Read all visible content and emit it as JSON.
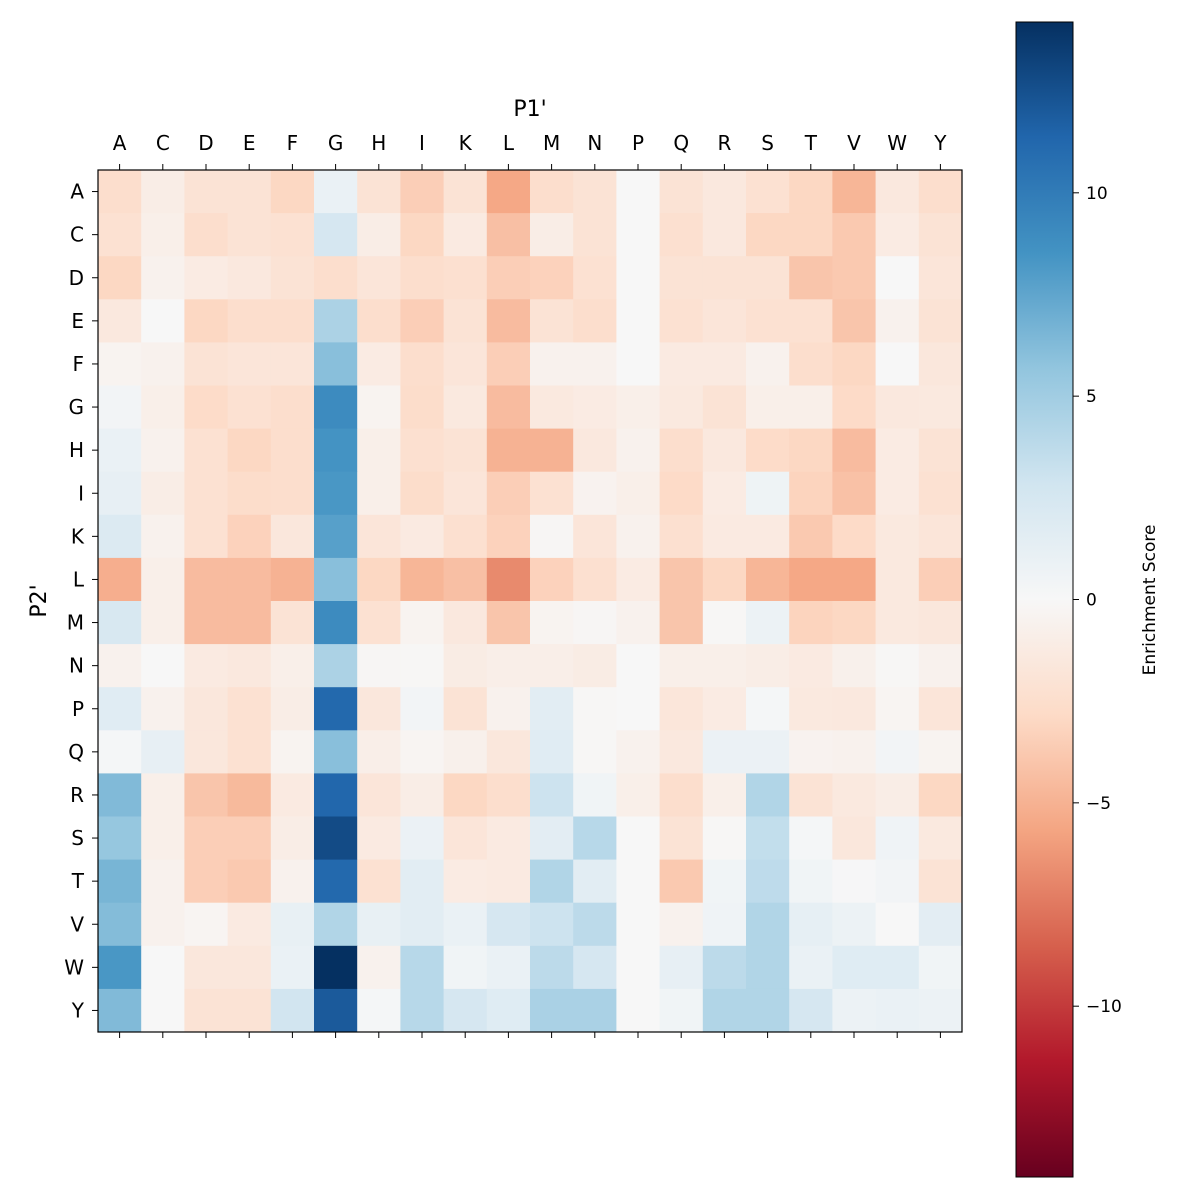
{
  "chart_data": {
    "type": "heatmap",
    "xlabel": "P1'",
    "ylabel": "P2'",
    "x_categories": [
      "A",
      "C",
      "D",
      "E",
      "F",
      "G",
      "H",
      "I",
      "K",
      "L",
      "M",
      "N",
      "P",
      "Q",
      "R",
      "S",
      "T",
      "V",
      "W",
      "Y"
    ],
    "y_categories": [
      "A",
      "C",
      "D",
      "E",
      "F",
      "G",
      "H",
      "I",
      "K",
      "L",
      "M",
      "N",
      "P",
      "Q",
      "R",
      "S",
      "T",
      "V",
      "W",
      "Y"
    ],
    "colormap": "RdBu",
    "vmin": -14.2,
    "vmax": 14.2,
    "colorbar": {
      "label": "Enrichment Score",
      "ticks": [
        -10,
        -5,
        0,
        5,
        10
      ],
      "tick_labels": [
        "−10",
        "−5",
        "0",
        "5",
        "10"
      ]
    },
    "values": [
      [
        -2.5,
        -1,
        -2,
        -2,
        -3,
        1,
        -2,
        -3.5,
        -2,
        -5.5,
        -2.5,
        -2,
        0,
        -2,
        -1.5,
        -2.2,
        -3,
        -4.8,
        -1.5,
        -2.5
      ],
      [
        -2.2,
        -0.8,
        -2.5,
        -2,
        -2.2,
        2.5,
        -1,
        -3,
        -1.3,
        -4.3,
        -1,
        -2,
        0,
        -2.3,
        -1.5,
        -3,
        -3,
        -3.8,
        -1.2,
        -2
      ],
      [
        -3,
        -0.6,
        -1.2,
        -1.5,
        -2,
        -2.5,
        -1.8,
        -2.5,
        -2.3,
        -3.5,
        -3.3,
        -2.2,
        0,
        -2,
        -2,
        -2,
        -4,
        -3.8,
        0,
        -1.8
      ],
      [
        -1.5,
        0,
        -3,
        -2.5,
        -2.5,
        4.5,
        -2.5,
        -3.5,
        -2,
        -4.5,
        -2,
        -2.5,
        0,
        -2.2,
        -1.8,
        -2.2,
        -2.2,
        -4,
        -0.6,
        -2
      ],
      [
        -0.4,
        -0.6,
        -2,
        -1.8,
        -1.8,
        6,
        -1.2,
        -2.5,
        -1.8,
        -3.5,
        -0.6,
        -0.6,
        0,
        -1.3,
        -1.3,
        -0.6,
        -2.5,
        -3,
        0,
        -1.6
      ],
      [
        0.4,
        -0.8,
        -2.7,
        -2.2,
        -2.5,
        9,
        -0.4,
        -2.6,
        -1.4,
        -4.5,
        -1.4,
        -1.2,
        -0.8,
        -1.4,
        -2,
        -0.8,
        -0.8,
        -2.8,
        -1.5,
        -1.4
      ],
      [
        1,
        -0.6,
        -2.2,
        -3,
        -2.5,
        8.5,
        -0.8,
        -2.3,
        -2,
        -5,
        -5,
        -1.5,
        -0.6,
        -2.5,
        -1.5,
        -2.7,
        -3,
        -4.5,
        -1.2,
        -2
      ],
      [
        1.2,
        -1,
        -2.2,
        -2.6,
        -2.5,
        8.3,
        -0.8,
        -2.6,
        -1.8,
        -3.5,
        -2.2,
        -0.5,
        -0.8,
        -2.8,
        -1.2,
        0.7,
        -3.2,
        -4.2,
        -1.2,
        -2.2
      ],
      [
        2,
        -0.6,
        -2.2,
        -3.3,
        -1.6,
        7.8,
        -1.8,
        -1.3,
        -2.3,
        -3.3,
        -0.2,
        -1.8,
        -0.6,
        -2.3,
        -1.3,
        -1.3,
        -3.8,
        -2.8,
        -1.4,
        -1.8
      ],
      [
        -5.2,
        -0.8,
        -4.5,
        -4.5,
        -5,
        6,
        -3,
        -4.8,
        -4.3,
        -6.8,
        -3.3,
        -2.3,
        -1.2,
        -4,
        -3,
        -4.8,
        -5.5,
        -5.5,
        -1.4,
        -3.5
      ],
      [
        2.3,
        -0.8,
        -4.5,
        -4.5,
        -2,
        9,
        -2.2,
        -0.4,
        -1.5,
        -4,
        -0.4,
        -0.2,
        -0.6,
        -4,
        -0.1,
        0.8,
        -3.2,
        -3,
        -1.4,
        -1.6
      ],
      [
        -0.6,
        0,
        -1.3,
        -1.5,
        -0.8,
        4.5,
        -0.2,
        -0.1,
        -1.1,
        -0.9,
        -0.9,
        -1.1,
        0,
        -0.8,
        -0.8,
        -1,
        -1.3,
        -0.7,
        -0.1,
        -0.6
      ],
      [
        1.7,
        -0.6,
        -1.6,
        -2.2,
        -1,
        11.2,
        -1.6,
        0.4,
        -2,
        -0.6,
        1.6,
        -0.1,
        0,
        -1.7,
        -1.2,
        0.2,
        -1.4,
        -1.5,
        -0.3,
        -1.8
      ],
      [
        0.2,
        1.2,
        -1.6,
        -2.2,
        -0.4,
        6,
        -0.9,
        -0.3,
        -0.7,
        -1.6,
        1.7,
        -0.1,
        -0.6,
        -1.5,
        0.9,
        0.9,
        -0.5,
        -0.6,
        0.4,
        -0.4
      ],
      [
        6.3,
        -0.8,
        -4,
        -4.6,
        -1.3,
        11.3,
        -1.8,
        -1,
        -3,
        -2.5,
        3,
        0.5,
        -0.8,
        -2.5,
        -0.8,
        4.3,
        -2,
        -1.4,
        -1,
        -3
      ],
      [
        5.5,
        -0.8,
        -3.5,
        -3.5,
        -1,
        12.8,
        -1.3,
        0.9,
        -1.8,
        -1.3,
        1.5,
        4,
        0,
        -2,
        -0.1,
        3.5,
        0.2,
        -1.6,
        0.6,
        -1.4
      ],
      [
        6.6,
        -0.6,
        -3.5,
        -3.8,
        -0.6,
        11.2,
        -2.2,
        1.6,
        -1.2,
        -1.3,
        4.3,
        1.6,
        0,
        -3.8,
        0.5,
        3.7,
        0.5,
        0.1,
        0.4,
        -2
      ],
      [
        6.2,
        -0.6,
        -0.3,
        -1.3,
        1.1,
        4.3,
        1.1,
        1.6,
        1,
        2.5,
        3,
        3.8,
        0,
        -0.6,
        0.6,
        4.3,
        1.3,
        0.8,
        0,
        1.5
      ],
      [
        8.3,
        0,
        -1.6,
        -1.6,
        1,
        14.2,
        -0.6,
        4,
        0.5,
        1,
        3.8,
        2.5,
        0,
        1.2,
        3.8,
        4.3,
        1,
        1.8,
        1.8,
        0.5
      ],
      [
        6.3,
        0,
        -2,
        -2,
        2.8,
        12,
        0.2,
        4,
        2.5,
        1.8,
        4.6,
        4.6,
        0,
        0.5,
        4.3,
        4.3,
        2.5,
        0.8,
        1,
        0.8
      ]
    ]
  }
}
